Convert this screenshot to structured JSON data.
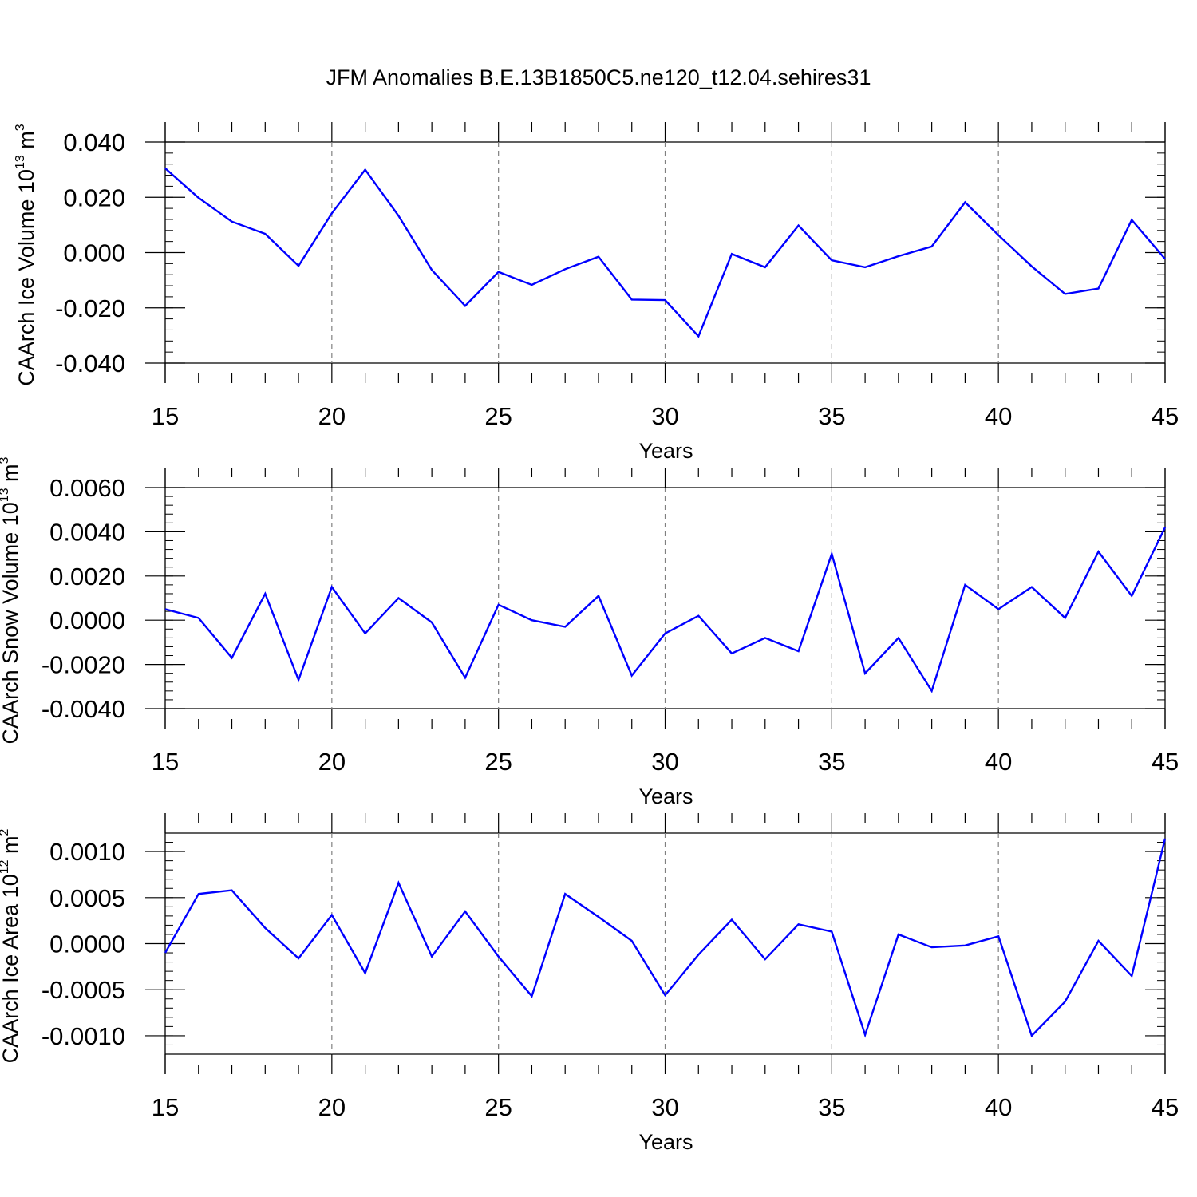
{
  "title": "JFM Anomalies B.E.13B1850C5.ne120_t12.04.sehires31",
  "colors": {
    "line": "#0000ff",
    "axis": "#000000",
    "grid": "#808080"
  },
  "chart_data": [
    {
      "type": "line",
      "xlabel": "Years",
      "ylabel": {
        "main": "CAArch Ice Volume 10",
        "exp": "13",
        "unit": " m",
        "unit_exp": "3"
      },
      "xlim": [
        15,
        45
      ],
      "ylim": [
        -0.04,
        0.04
      ],
      "xticks": [
        15,
        20,
        25,
        30,
        35,
        40,
        45
      ],
      "yticks": [
        "0.040",
        "0.020",
        "0.000",
        "-0.020",
        "-0.040"
      ],
      "ytick_values": [
        0.04,
        0.02,
        0.0,
        -0.02,
        -0.04
      ],
      "grid_x": [
        20,
        25,
        30,
        35,
        40
      ],
      "x": [
        15,
        16,
        17,
        18,
        19,
        20,
        21,
        22,
        23,
        24,
        25,
        26,
        27,
        28,
        29,
        30,
        31,
        32,
        33,
        34,
        35,
        36,
        37,
        38,
        39,
        40,
        41,
        42,
        43,
        44,
        45
      ],
      "values": [
        0.0305,
        0.0198,
        0.0112,
        0.0068,
        -0.0048,
        0.0142,
        0.03,
        0.0133,
        -0.0063,
        -0.0193,
        -0.007,
        -0.0117,
        -0.006,
        -0.0015,
        -0.017,
        -0.0172,
        -0.0303,
        -0.0005,
        -0.0053,
        0.0098,
        -0.0028,
        -0.0053,
        -0.0013,
        0.0022,
        0.0182,
        0.0063,
        -0.005,
        -0.015,
        -0.013,
        0.0118,
        -0.0023
      ]
    },
    {
      "type": "line",
      "xlabel": "Years",
      "ylabel": {
        "main": "CAArch Snow Volume 10",
        "exp": "13",
        "unit": " m",
        "unit_exp": "3"
      },
      "xlim": [
        15,
        45
      ],
      "ylim": [
        -0.004,
        0.006
      ],
      "xticks": [
        15,
        20,
        25,
        30,
        35,
        40,
        45
      ],
      "yticks": [
        "0.0060",
        "0.0040",
        "0.0020",
        "0.0000",
        "-0.0020",
        "-0.0040"
      ],
      "ytick_values": [
        0.006,
        0.004,
        0.002,
        0.0,
        -0.002,
        -0.004
      ],
      "grid_x": [
        20,
        25,
        30,
        35,
        40
      ],
      "x": [
        15,
        16,
        17,
        18,
        19,
        20,
        21,
        22,
        23,
        24,
        25,
        26,
        27,
        28,
        29,
        30,
        31,
        32,
        33,
        34,
        35,
        36,
        37,
        38,
        39,
        40,
        41,
        42,
        43,
        44,
        45
      ],
      "values": [
        0.0005,
        0.0001,
        -0.0017,
        0.0012,
        -0.0027,
        0.0015,
        -0.0006,
        0.001,
        -0.0001,
        -0.0026,
        0.0007,
        0.0,
        -0.0003,
        0.0011,
        -0.0025,
        -0.0006,
        0.0002,
        -0.0015,
        -0.0008,
        -0.0014,
        0.003,
        -0.0024,
        -0.0008,
        -0.0032,
        0.0016,
        0.0005,
        0.0015,
        0.0001,
        0.0031,
        0.0011,
        0.0042
      ]
    },
    {
      "type": "line",
      "xlabel": "Years",
      "ylabel": {
        "main": "CAArch Ice Area 10",
        "exp": "12",
        "unit": " m",
        "unit_exp": "2"
      },
      "xlim": [
        15,
        45
      ],
      "ylim": [
        -0.0012,
        0.0012
      ],
      "xticks": [
        15,
        20,
        25,
        30,
        35,
        40,
        45
      ],
      "yticks": [
        "0.0010",
        "0.0005",
        "0.0000",
        "-0.0005",
        "-0.0010"
      ],
      "ytick_values": [
        0.001,
        0.0005,
        0.0,
        -0.0005,
        -0.001
      ],
      "grid_x": [
        20,
        25,
        30,
        35,
        40
      ],
      "x": [
        15,
        16,
        17,
        18,
        19,
        20,
        21,
        22,
        23,
        24,
        25,
        26,
        27,
        28,
        29,
        30,
        31,
        32,
        33,
        34,
        35,
        36,
        37,
        38,
        39,
        40,
        41,
        42,
        43,
        44,
        45
      ],
      "values": [
        -0.0001,
        0.00054,
        0.00058,
        0.00017,
        -0.00016,
        0.00031,
        -0.00032,
        0.00066,
        -0.00014,
        0.00035,
        -0.00014,
        -0.00057,
        0.00054,
        0.00029,
        3e-05,
        -0.00056,
        -0.00012,
        0.00026,
        -0.00017,
        0.00021,
        0.00013,
        -0.00099,
        0.0001,
        -4e-05,
        -2e-05,
        8e-05,
        -0.001,
        -0.00063,
        3e-05,
        -0.00035,
        0.00114
      ]
    }
  ]
}
